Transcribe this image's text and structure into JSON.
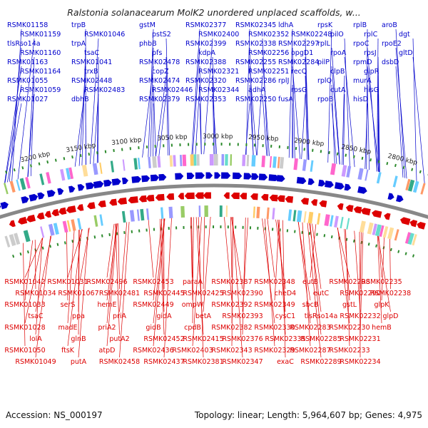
{
  "title": "Ralstonia solanacearum MolK2 unordered unplaced scaffolds, w...",
  "footer": {
    "accession": "Accession: NS_000197",
    "summary": "Topology: linear; Length: 5,964,607 bp; Genes: 4,975"
  },
  "ruler": [
    "3200 kbp",
    "3150 kbp",
    "3100 kbp",
    "3050 kbp",
    "3000 kbp",
    "2950 kbp",
    "2900 kbp",
    "2850 kbp",
    "2800 kbp"
  ],
  "colors": {
    "forward": "#0000cc",
    "reverse": "#dd0000",
    "backbone": "#888888",
    "tick": "#2e8b2e"
  },
  "top_labels": [
    "RSMK01158",
    "RSMK01159",
    "tlsRso14a",
    "RSMK01160",
    "RSMK01163",
    "RSMK01164",
    "RSMK01055",
    "RSMK01059",
    "RSMK01027",
    "trpB",
    "RSMK01046",
    "trpA",
    "tsaC",
    "RSMK01041",
    "trxB",
    "RSMK02448",
    "RSMK02483",
    "dbhB",
    "gstM",
    "pstS2",
    "phbB",
    "pfs",
    "RSMK02478",
    "copZ",
    "RSMK02474",
    "RSMK02446",
    "RSMK02379",
    "RSMK02377",
    "RSMK02400",
    "RSMK02399",
    "kdpA",
    "RSMK02388",
    "RSMK02321",
    "RSMK02320",
    "RSMK02344",
    "RSMK02353",
    "RSMK02345",
    "RSMK02352",
    "RSMK02338",
    "RSMK02256",
    "RSMK02255",
    "RSMK02251",
    "RSMK02286",
    "adhA",
    "RSMK02250",
    "ldhA",
    "RSMK02248",
    "RSMK02297",
    "opgD1",
    "RSMK02284",
    "recQ",
    "rplJ",
    "rpsG",
    "fusA",
    "rpsK",
    "pilO",
    "rplL",
    "rpoA",
    "pilP",
    "clpB",
    "rplQ",
    "cutA",
    "rpoB",
    "rplB",
    "rplC",
    "rpoC",
    "rpsJ",
    "rpmD",
    "glpR",
    "murA",
    "hisG",
    "hisD",
    "aroB",
    "dgt",
    "rpoE2",
    "gltD",
    "dsbD"
  ],
  "bottom_labels": [
    "RSMK01042",
    "RSMK01034",
    "RSMK01033",
    "tsaC",
    "RSMK01028",
    "lolA",
    "RSMK01050",
    "RSMK01049",
    "RSMK01031",
    "RSMK01067",
    "serS",
    "ppa",
    "madE",
    "glnB",
    "ftsK",
    "putA",
    "RSMK02496",
    "RSMK02481",
    "hemE",
    "priA",
    "priA2",
    "putA2",
    "atpD",
    "RSMK02458",
    "RSMK02453",
    "RSMK02445",
    "RSMK02449",
    "gidA",
    "gidB",
    "RSMK02452",
    "RSMK02436",
    "RSMK02437",
    "paraA",
    "RSMK02425",
    "ompW",
    "betA",
    "cpdB",
    "RSMK02415",
    "RSMK02403",
    "RSMK02381",
    "RSMK02387",
    "RSMK02390",
    "RSMK02392",
    "RSMK02393",
    "RSMK02382",
    "RSMK02376",
    "RSMK02343",
    "RSMK02347",
    "RSMK02348",
    "cheD4",
    "RSMK02349",
    "cysC1",
    "RSMK02330",
    "RSMK02335",
    "RSMK02329",
    "exaC",
    "eutB",
    "eutC",
    "sbcB",
    "tlsRso14a",
    "RSMK02283",
    "RSMK02285",
    "RSMK02287",
    "RSMK02289",
    "RSMK02298",
    "RSMK02290",
    "gstL",
    "RSMK02232",
    "RSMK02230",
    "RSMK02231",
    "RSMK02233",
    "RSMK02234",
    "RSMK02235",
    "RSMK02238",
    "glpK",
    "glpD",
    "hemB"
  ]
}
